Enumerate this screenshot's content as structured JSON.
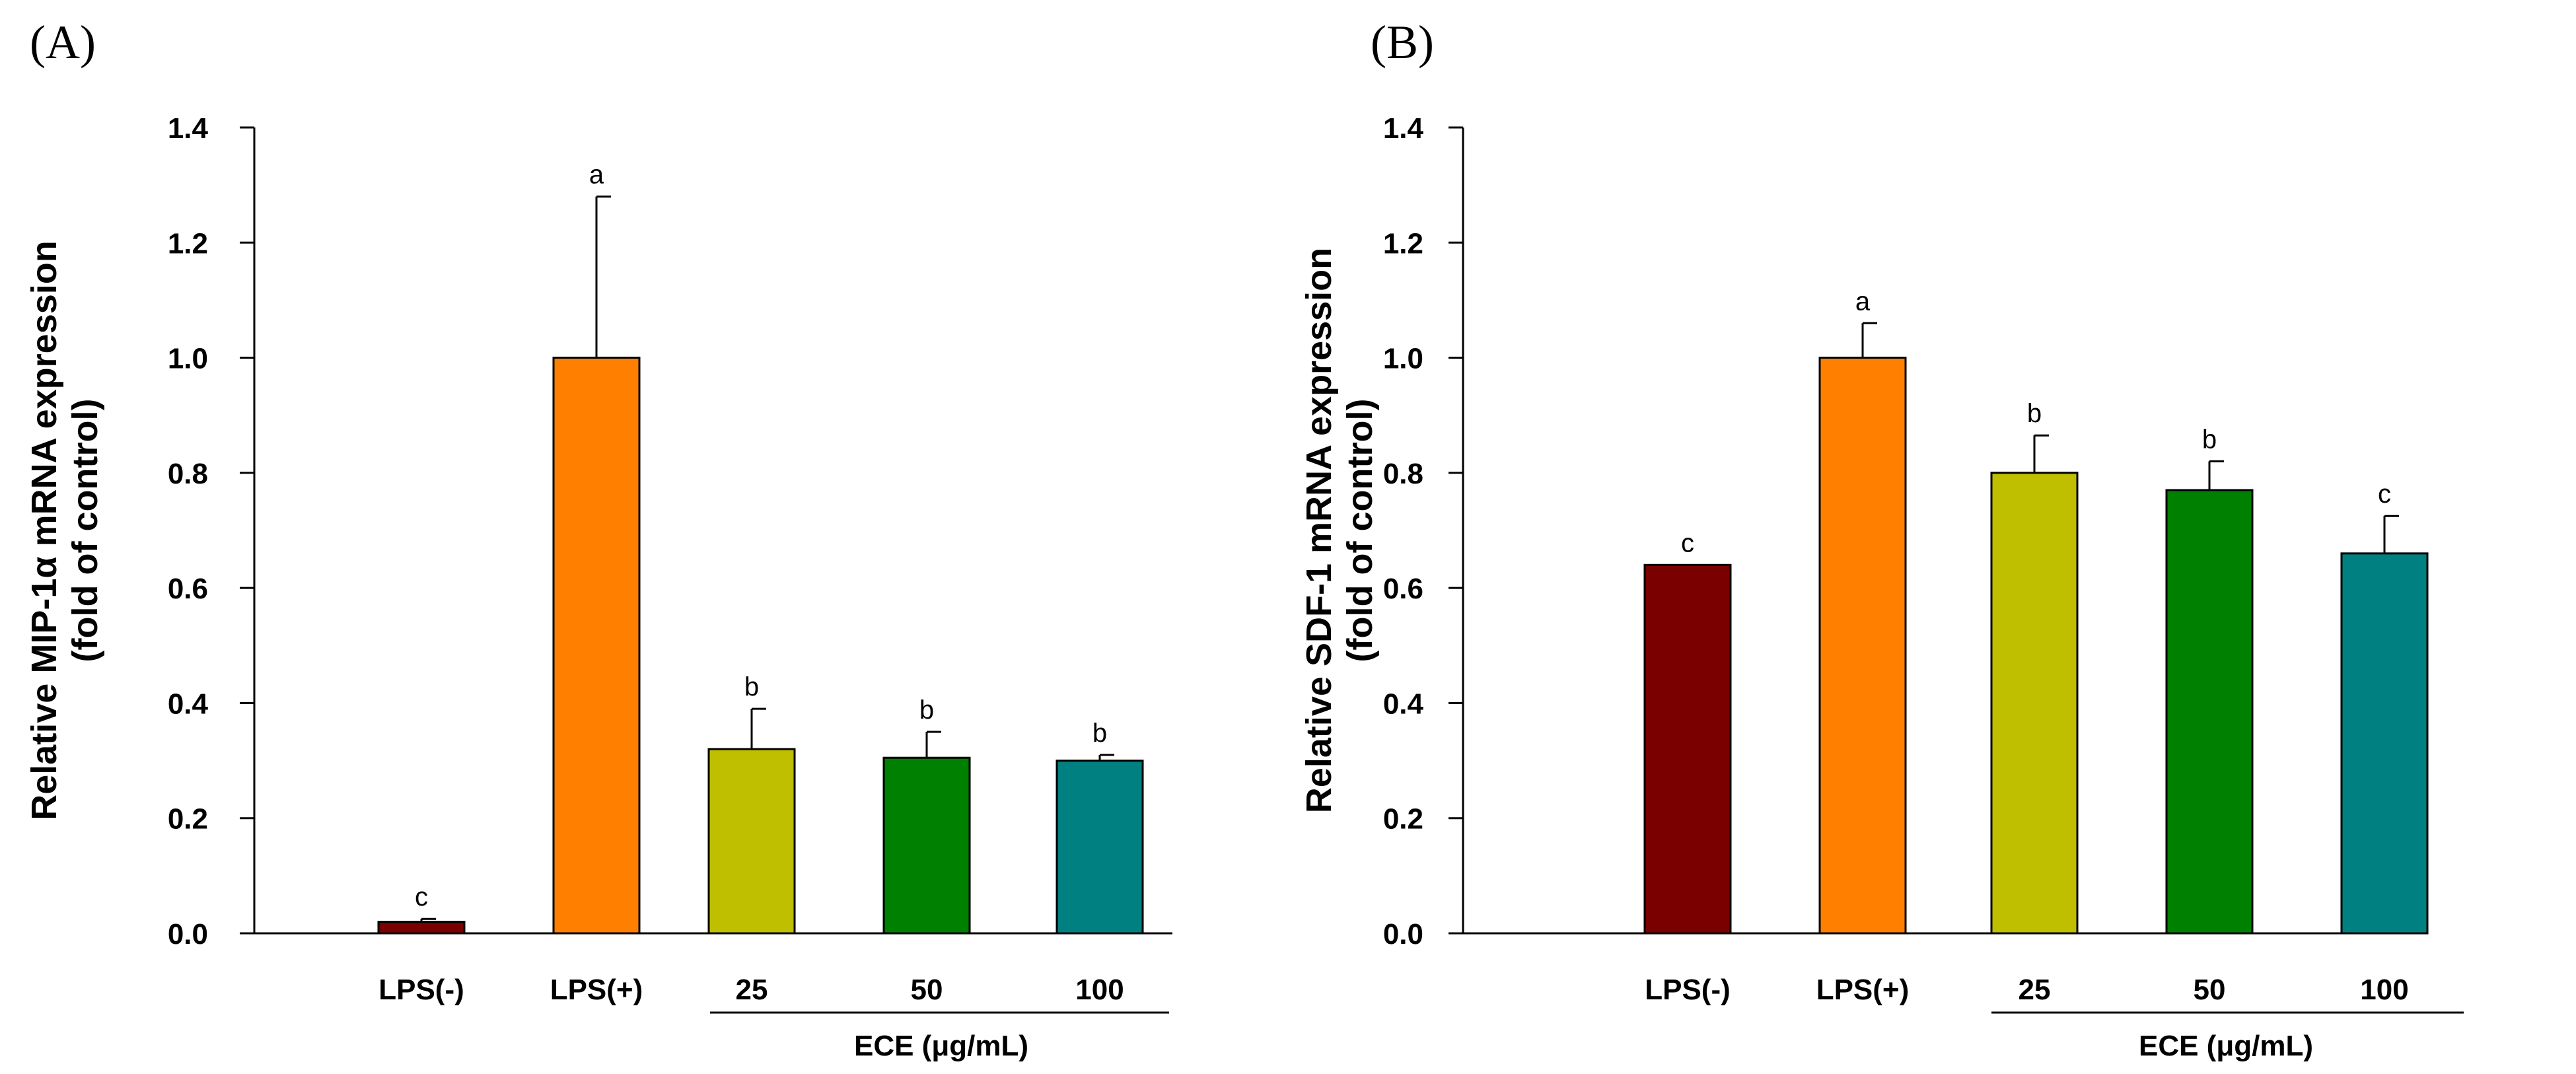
{
  "figure": {
    "chart_data": [
      {
        "type": "bar",
        "panel_label": "(A)",
        "ylabel_line1": "Relative MIP-1α mRNA expression",
        "ylabel_line2": "(fold of control)",
        "categories": [
          "LPS(-)",
          "LPS(+)",
          "25",
          "50",
          "100"
        ],
        "values": [
          0.02,
          1.0,
          0.32,
          0.305,
          0.3
        ],
        "errors": [
          0.005,
          0.28,
          0.07,
          0.045,
          0.01
        ],
        "significance": [
          "c",
          "a",
          "b",
          "b",
          "b"
        ],
        "colors": [
          "#7a0000",
          "#ff8000",
          "#bfbf00",
          "#008000",
          "#008080"
        ],
        "group_label": "ECE (μg/mL)",
        "group_categories": [
          2,
          4
        ],
        "ylim": [
          0,
          1.4
        ],
        "yticks": [
          0.0,
          0.2,
          0.4,
          0.6,
          0.8,
          1.0,
          1.2,
          1.4
        ],
        "ytick_labels": [
          "0.0",
          "0.2",
          "0.4",
          "0.6",
          "0.8",
          "1.0",
          "1.2",
          "1.4"
        ]
      },
      {
        "type": "bar",
        "panel_label": "(B)",
        "ylabel_line1": "Relative SDF-1 mRNA expression",
        "ylabel_line2": "(fold of control)",
        "categories": [
          "LPS(-)",
          "LPS(+)",
          "25",
          "50",
          "100"
        ],
        "values": [
          0.64,
          1.0,
          0.8,
          0.77,
          0.66
        ],
        "errors": [
          0.0,
          0.06,
          0.065,
          0.05,
          0.065
        ],
        "significance": [
          "c",
          "a",
          "b",
          "b",
          "c"
        ],
        "colors": [
          "#7a0000",
          "#ff8000",
          "#bfbf00",
          "#008000",
          "#008080"
        ],
        "group_label": "ECE (μg/mL)",
        "group_categories": [
          2,
          4
        ],
        "ylim": [
          0,
          1.4
        ],
        "yticks": [
          0.0,
          0.2,
          0.4,
          0.6,
          0.8,
          1.0,
          1.2,
          1.4
        ],
        "ytick_labels": [
          "0.0",
          "0.2",
          "0.4",
          "0.6",
          "0.8",
          "1.0",
          "1.2",
          "1.4"
        ]
      }
    ]
  }
}
